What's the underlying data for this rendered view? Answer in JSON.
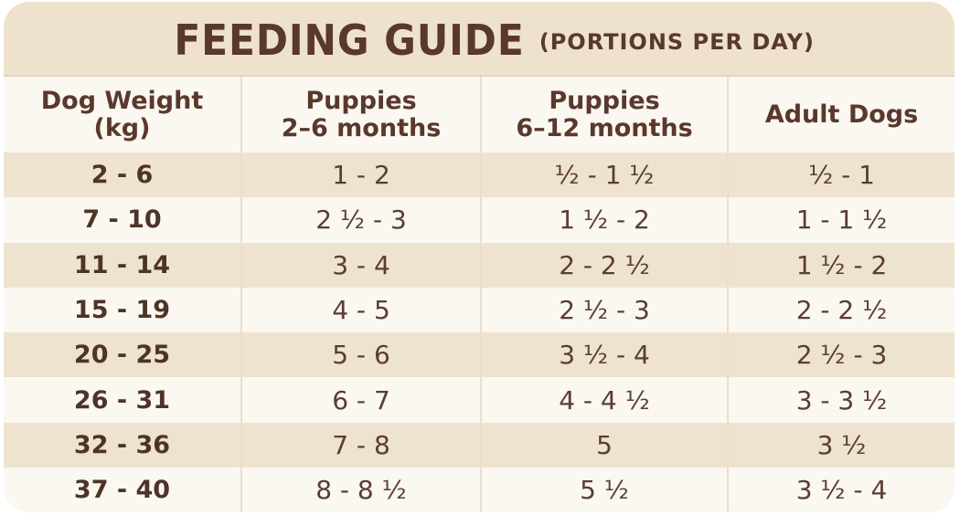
{
  "title": {
    "main": "FEEDING GUIDE",
    "sub": "(PORTIONS PER DAY)"
  },
  "table": {
    "headers": [
      [
        "Dog Weight",
        "(kg)"
      ],
      [
        "Puppies",
        "2–6 months"
      ],
      [
        "Puppies",
        "6–12 months"
      ],
      [
        "Adult Dogs"
      ]
    ],
    "rows": [
      [
        "2 - 6",
        "1 - 2",
        "½ - 1 ½",
        "½ - 1"
      ],
      [
        "7 - 10",
        "2 ½ - 3",
        "1 ½ - 2",
        "1 - 1 ½"
      ],
      [
        "11 - 14",
        "3 - 4",
        "2 - 2 ½",
        "1 ½ - 2"
      ],
      [
        "15 - 19",
        "4 - 5",
        "2 ½ - 3",
        "2 - 2 ½"
      ],
      [
        "20 - 25",
        "5 - 6",
        "3 ½ - 4",
        "2 ½ - 3"
      ],
      [
        "26 - 31",
        "6 - 7",
        "4 - 4 ½",
        "3 - 3 ½"
      ],
      [
        "32 - 36",
        "7 - 8",
        "5",
        "3 ½"
      ],
      [
        "37 - 40",
        "8 - 8 ½",
        "5 ½",
        "3 ½ - 4"
      ]
    ]
  },
  "colors": {
    "text": "#4e3328",
    "band": "#eee3cf",
    "plain": "#fbf7f1",
    "title_bar": "#eee2cc"
  }
}
